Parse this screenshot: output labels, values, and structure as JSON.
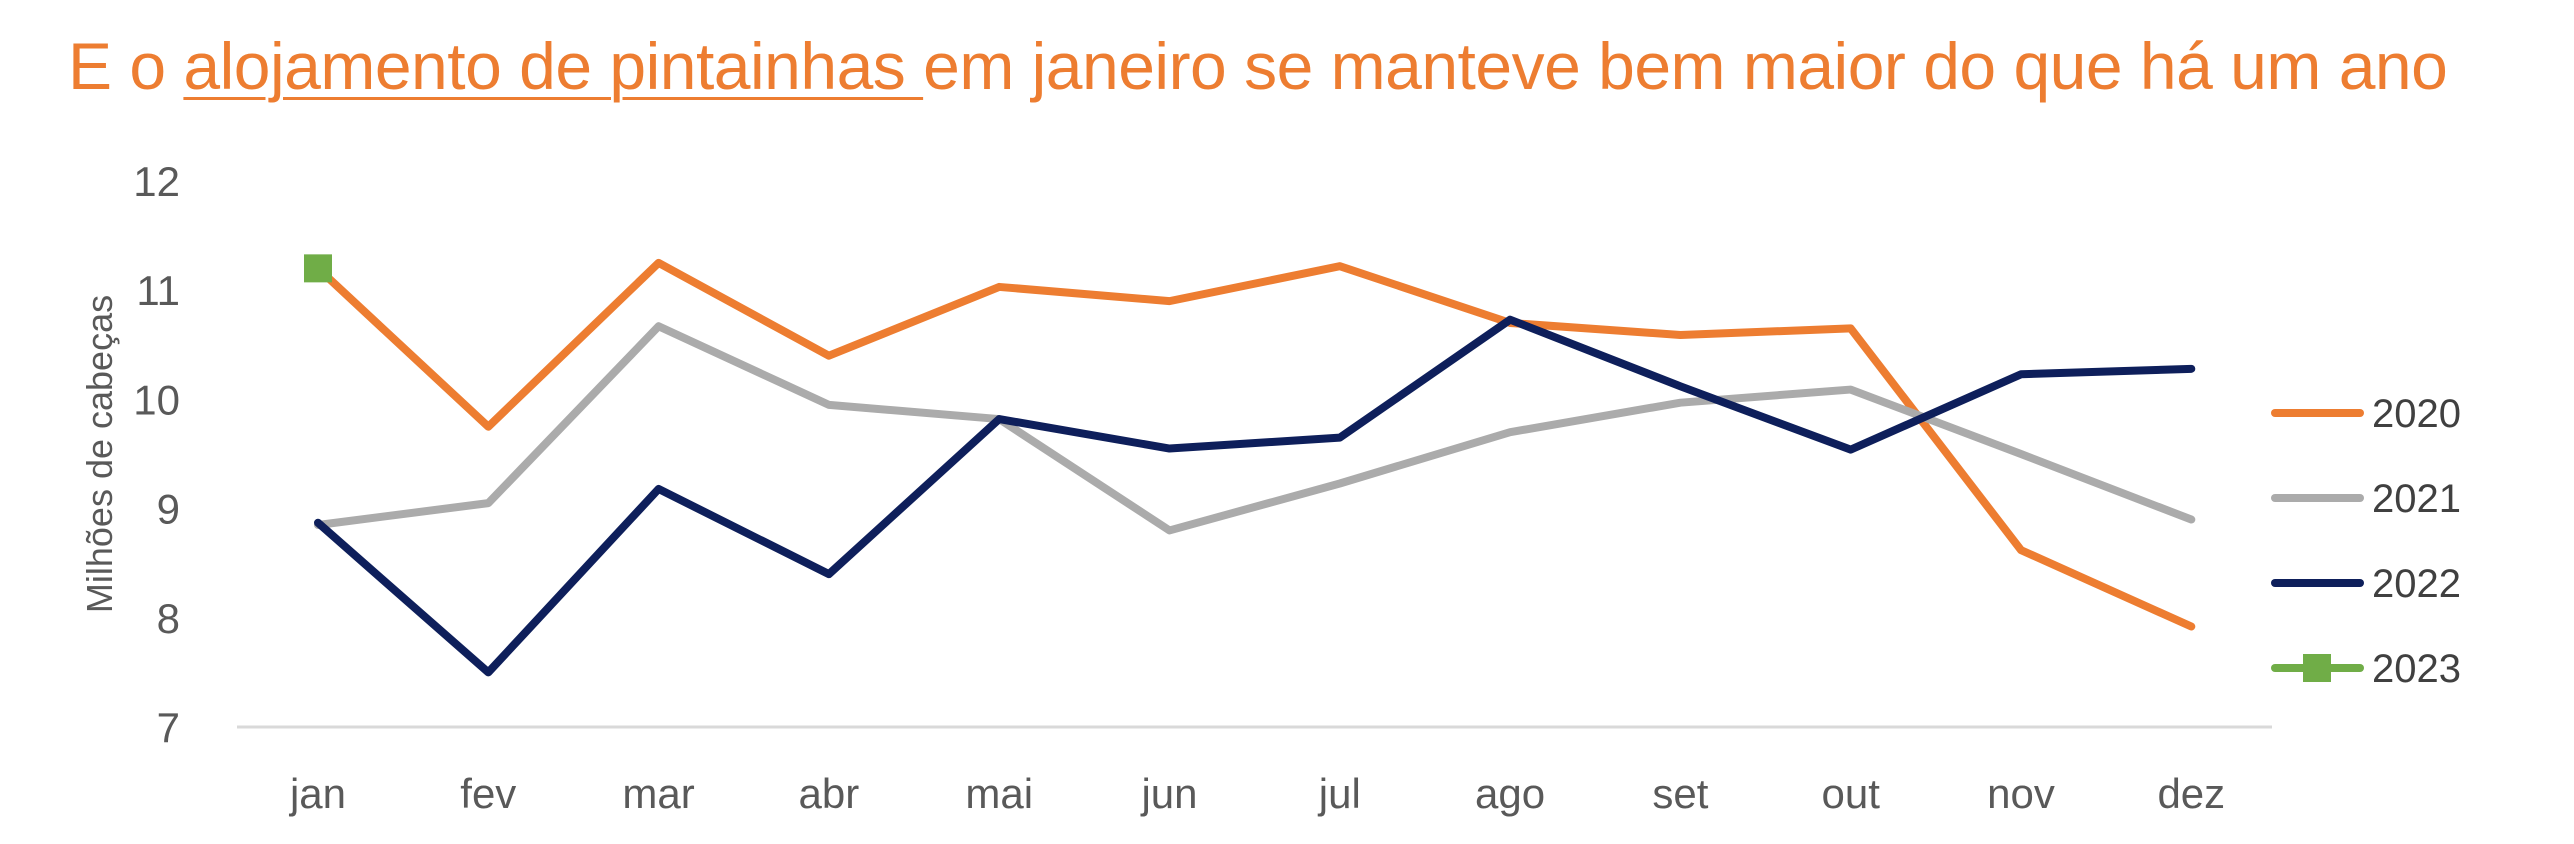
{
  "title": {
    "prefix": "E o ",
    "underlined": "alojamento de pintainhas ",
    "suffix": "em janeiro se manteve bem maior do que há um ano"
  },
  "chart_data": {
    "type": "line",
    "ylabel": "Milhões de cabeças",
    "xlabel": "",
    "ylim": [
      7,
      12
    ],
    "yticks": [
      7,
      8,
      9,
      10,
      11,
      12
    ],
    "grid": false,
    "legend_position": "right",
    "categories": [
      "jan",
      "fev",
      "mar",
      "abr",
      "mai",
      "jun",
      "jul",
      "ago",
      "set",
      "out",
      "nov",
      "dez"
    ],
    "series": [
      {
        "name": "2020",
        "color": "#ED7D31",
        "marker": "none",
        "values": [
          11.2,
          9.75,
          11.25,
          10.4,
          11.03,
          10.9,
          11.22,
          10.7,
          10.59,
          10.65,
          8.62,
          7.92
        ]
      },
      {
        "name": "2021",
        "color": "#ABABAB",
        "marker": "none",
        "values": [
          8.85,
          9.05,
          10.67,
          9.95,
          9.82,
          8.8,
          9.23,
          9.7,
          9.97,
          10.09,
          9.5,
          8.9
        ]
      },
      {
        "name": "2022",
        "color": "#0E1F5B",
        "marker": "none",
        "values": [
          8.87,
          7.5,
          9.18,
          8.4,
          9.82,
          9.55,
          9.65,
          10.73,
          10.12,
          9.54,
          10.23,
          10.28
        ]
      },
      {
        "name": "2023",
        "color": "#70AD47",
        "marker": "square",
        "values": [
          11.2,
          null,
          null,
          null,
          null,
          null,
          null,
          null,
          null,
          null,
          null,
          null
        ]
      }
    ]
  }
}
